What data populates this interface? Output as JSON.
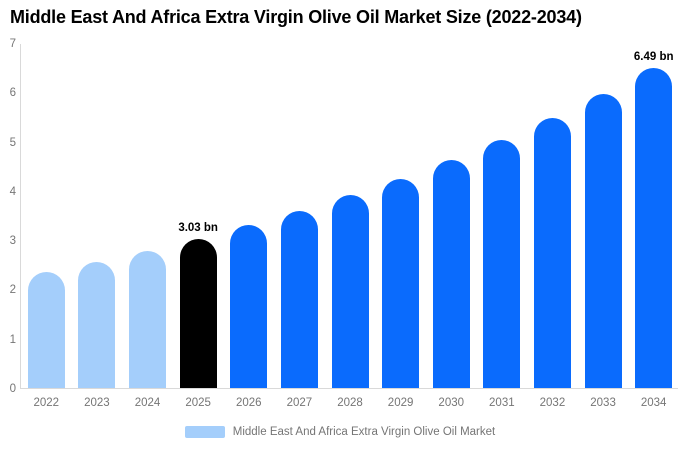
{
  "chart_data": {
    "type": "bar",
    "title": "Middle East And Africa Extra Virgin Olive Oil Market Size (2022-2034)",
    "categories": [
      "2022",
      "2023",
      "2024",
      "2025",
      "2026",
      "2027",
      "2028",
      "2029",
      "2030",
      "2031",
      "2032",
      "2033",
      "2034"
    ],
    "values": [
      2.35,
      2.56,
      2.78,
      3.03,
      3.3,
      3.59,
      3.91,
      4.25,
      4.63,
      5.04,
      5.48,
      5.97,
      6.49
    ],
    "bar_colors": [
      "#A4CEFB",
      "#A4CEFB",
      "#A4CEFB",
      "#000000",
      "#0A6BFD",
      "#0A6BFD",
      "#0A6BFD",
      "#0A6BFD",
      "#0A6BFD",
      "#0A6BFD",
      "#0A6BFD",
      "#0A6BFD",
      "#0A6BFD"
    ],
    "annotations": [
      {
        "category": "2025",
        "label": "3.03 bn"
      },
      {
        "category": "2034",
        "label": "6.49 bn"
      }
    ],
    "xlabel": "",
    "ylabel": "",
    "ylim": [
      0,
      7
    ],
    "yticks": [
      0,
      1,
      2,
      3,
      4,
      5,
      6,
      7
    ],
    "grid": false,
    "legend_position": "bottom",
    "colors": {
      "historical_bar": "#A4CEFB",
      "highlight_bar": "#000000",
      "forecast_bar": "#0A6BFD",
      "axis_line": "#D9D9D9",
      "tick_text": "#757575",
      "title_text": "#000000"
    },
    "legend": {
      "items": [
        {
          "label": "Middle East And Africa Extra Virgin Olive Oil Market",
          "color": "#A4CEFB"
        }
      ]
    }
  }
}
